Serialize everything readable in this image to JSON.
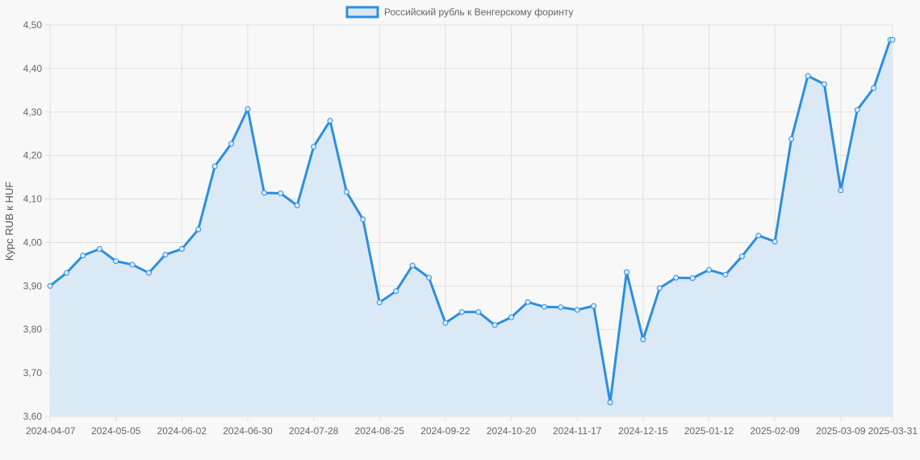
{
  "chart_data": {
    "type": "line",
    "title": "",
    "xlabel": "",
    "ylabel": "Курс RUB к HUF",
    "ylim": [
      3.6,
      4.5
    ],
    "y_ticks": [
      "3,60",
      "3,70",
      "3,80",
      "3,90",
      "4,00",
      "4,10",
      "4,20",
      "4,30",
      "4,40",
      "4,50"
    ],
    "x_tick_labels": [
      "2024-04-07",
      "2024-05-05",
      "2024-06-02",
      "2024-06-30",
      "2024-07-28",
      "2024-08-25",
      "2024-09-22",
      "2024-10-20",
      "2024-11-17",
      "2024-12-15",
      "2025-01-12",
      "2025-02-09",
      "2025-03-09",
      "2025-03-31"
    ],
    "grid": true,
    "legend_position": "top",
    "colors": {
      "line": "#2b8fe0",
      "fill": "#dbe9f7",
      "grid": "#e0e0e0",
      "background": "#f8f8f8"
    },
    "series": [
      {
        "name": "Российский рубль к Венгерскому форинту",
        "points": [
          [
            "2024-04-07",
            3.9
          ],
          [
            "2024-04-14",
            3.93
          ],
          [
            "2024-04-21",
            3.97
          ],
          [
            "2024-04-28",
            3.985
          ],
          [
            "2024-05-05",
            3.957
          ],
          [
            "2024-05-12",
            3.949
          ],
          [
            "2024-05-19",
            3.93
          ],
          [
            "2024-05-26",
            3.972
          ],
          [
            "2024-06-02",
            3.985
          ],
          [
            "2024-06-09",
            4.03
          ],
          [
            "2024-06-16",
            4.175
          ],
          [
            "2024-06-23",
            4.227
          ],
          [
            "2024-06-30",
            4.307
          ],
          [
            "2024-07-07",
            4.114
          ],
          [
            "2024-07-14",
            4.113
          ],
          [
            "2024-07-21",
            4.085
          ],
          [
            "2024-07-28",
            4.22
          ],
          [
            "2024-08-04",
            4.28
          ],
          [
            "2024-08-11",
            4.116
          ],
          [
            "2024-08-18",
            4.053
          ],
          [
            "2024-08-25",
            3.862
          ],
          [
            "2024-09-01",
            3.888
          ],
          [
            "2024-09-08",
            3.947
          ],
          [
            "2024-09-15",
            3.919
          ],
          [
            "2024-09-22",
            3.815
          ],
          [
            "2024-09-29",
            3.84
          ],
          [
            "2024-10-06",
            3.84
          ],
          [
            "2024-10-13",
            3.81
          ],
          [
            "2024-10-20",
            3.828
          ],
          [
            "2024-10-27",
            3.863
          ],
          [
            "2024-11-03",
            3.852
          ],
          [
            "2024-11-10",
            3.851
          ],
          [
            "2024-11-17",
            3.845
          ],
          [
            "2024-11-24",
            3.854
          ],
          [
            "2024-12-01",
            3.632
          ],
          [
            "2024-12-08",
            3.932
          ],
          [
            "2024-12-15",
            3.777
          ],
          [
            "2024-12-22",
            3.895
          ],
          [
            "2024-12-29",
            3.919
          ],
          [
            "2025-01-05",
            3.918
          ],
          [
            "2025-01-12",
            3.937
          ],
          [
            "2025-01-19",
            3.926
          ],
          [
            "2025-01-26",
            3.968
          ],
          [
            "2025-02-02",
            4.016
          ],
          [
            "2025-02-09",
            4.002
          ],
          [
            "2025-02-16",
            4.238
          ],
          [
            "2025-02-23",
            4.383
          ],
          [
            "2025-03-02",
            4.364
          ],
          [
            "2025-03-09",
            4.12
          ],
          [
            "2025-03-16",
            4.305
          ],
          [
            "2025-03-23",
            4.355
          ],
          [
            "2025-03-30",
            4.466
          ],
          [
            "2025-03-31",
            4.466
          ]
        ]
      }
    ]
  }
}
